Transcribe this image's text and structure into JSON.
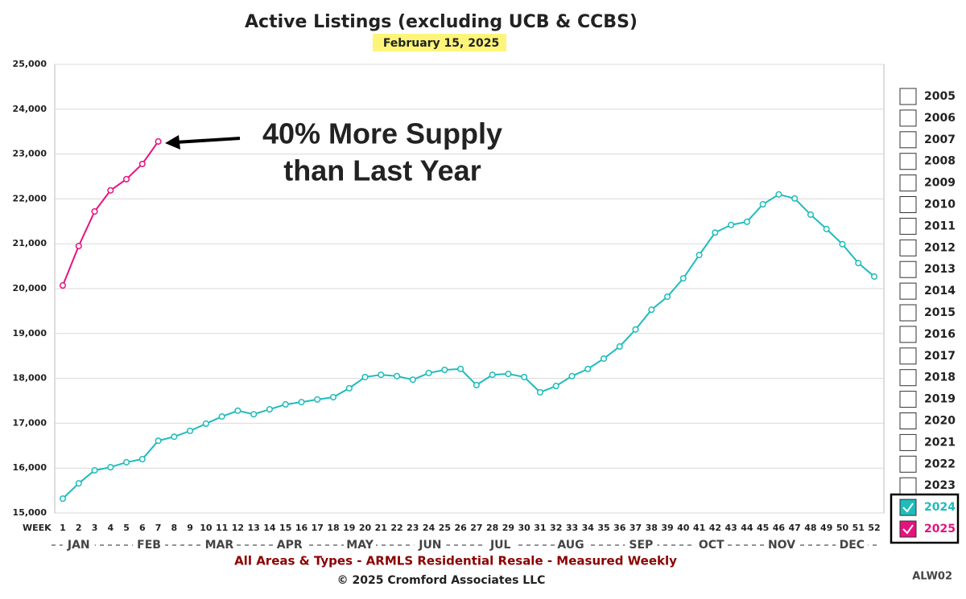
{
  "chart_data": {
    "type": "line",
    "title": "Active Listings (excluding UCB & CCBS)",
    "subtitle": "February 15, 2025",
    "annotation": [
      "40% More Supply",
      "than Last Year"
    ],
    "x_label": "WEEK",
    "categories": [
      "1",
      "2",
      "3",
      "4",
      "5",
      "6",
      "7",
      "8",
      "9",
      "10",
      "11",
      "12",
      "13",
      "14",
      "15",
      "16",
      "17",
      "18",
      "19",
      "20",
      "21",
      "22",
      "23",
      "24",
      "25",
      "26",
      "27",
      "28",
      "29",
      "30",
      "31",
      "32",
      "33",
      "34",
      "35",
      "36",
      "37",
      "38",
      "39",
      "40",
      "41",
      "42",
      "43",
      "44",
      "45",
      "46",
      "47",
      "48",
      "49",
      "50",
      "51",
      "52"
    ],
    "months": [
      "JAN",
      "FEB",
      "MAR",
      "APR",
      "MAY",
      "JUN",
      "JUL",
      "AUG",
      "SEP",
      "OCT",
      "NOV",
      "DEC"
    ],
    "ylim": [
      15000,
      25000
    ],
    "yticks": [
      {
        "value": 15000,
        "label": "15,000"
      },
      {
        "value": 16000,
        "label": "16,000"
      },
      {
        "value": 17000,
        "label": "17,000"
      },
      {
        "value": 18000,
        "label": "18,000"
      },
      {
        "value": 19000,
        "label": "19,000"
      },
      {
        "value": 20000,
        "label": "20,000"
      },
      {
        "value": 21000,
        "label": "21,000"
      },
      {
        "value": 22000,
        "label": "22,000"
      },
      {
        "value": 23000,
        "label": "23,000"
      },
      {
        "value": 24000,
        "label": "24,000"
      },
      {
        "value": 25000,
        "label": "25,000"
      }
    ],
    "grid": true,
    "legend_unchecked": [
      "2005",
      "2006",
      "2007",
      "2008",
      "2009",
      "2010",
      "2011",
      "2012",
      "2013",
      "2014",
      "2015",
      "2016",
      "2017",
      "2018",
      "2019",
      "2020",
      "2021",
      "2022",
      "2023"
    ],
    "series": [
      {
        "name": "2024",
        "color": "#1fbcbc",
        "values": [
          15320,
          15660,
          15950,
          16020,
          16130,
          16200,
          16610,
          16700,
          16830,
          16990,
          17150,
          17280,
          17200,
          17310,
          17420,
          17470,
          17530,
          17580,
          17780,
          18030,
          18080,
          18050,
          17970,
          18120,
          18190,
          18210,
          17850,
          18080,
          18100,
          18030,
          17690,
          17830,
          18050,
          18210,
          18440,
          18710,
          19090,
          19530,
          19820,
          20230,
          20750,
          21250,
          21420,
          21490,
          21880,
          22100,
          22010,
          21650,
          21330,
          20990,
          20570,
          20270
        ]
      },
      {
        "name": "2025",
        "color": "#e6127f",
        "values": [
          20070,
          20950,
          21720,
          22190,
          22440,
          22780,
          23280,
          null,
          null,
          null,
          null,
          null,
          null,
          null,
          null,
          null,
          null,
          null,
          null,
          null,
          null,
          null,
          null,
          null,
          null,
          null,
          null,
          null,
          null,
          null,
          null,
          null,
          null,
          null,
          null,
          null,
          null,
          null,
          null,
          null,
          null,
          null,
          null,
          null,
          null,
          null,
          null,
          null,
          null,
          null,
          null,
          null
        ]
      }
    ],
    "footer": "All Areas & Types - ARMLS Residential Resale - Measured Weekly",
    "copyright": "© 2025 Cromford Associates LLC",
    "code": "ALW02"
  }
}
